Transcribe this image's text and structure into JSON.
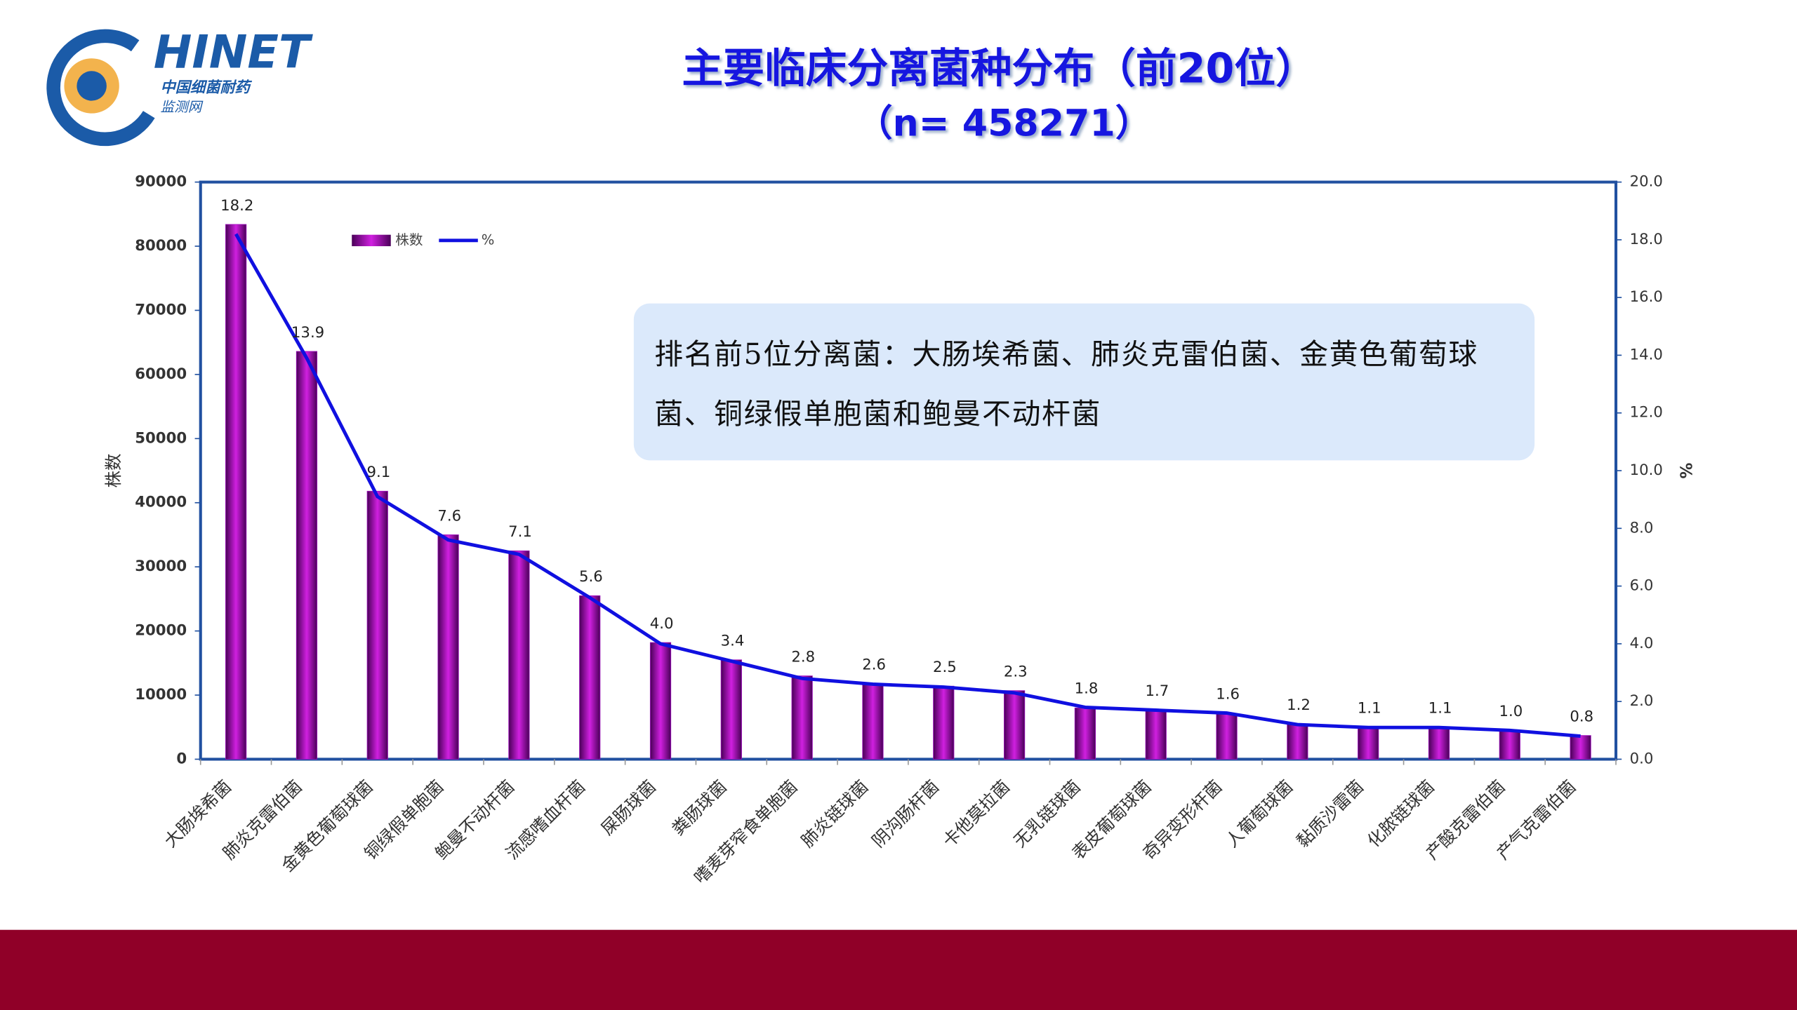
{
  "logo": {
    "text": "HINET",
    "line1": "中国细菌耐药",
    "line2": "监测网"
  },
  "chart_data": {
    "type": "bar-line",
    "title": "主要临床分离菌种分布（前20位）",
    "subtitle": "（n= 458271）",
    "annotation": "排名前5位分离菌：大肠埃希菌、肺炎克雷伯菌、金黄色葡萄球菌、铜绿假单胞菌和鲍曼不动杆菌",
    "y_label": "株数",
    "y2_label": "%",
    "legend": "top-left",
    "categories": [
      "大肠埃希菌",
      "肺炎克雷伯菌",
      "金黄色葡萄球菌",
      "铜绿假单胞菌",
      "鲍曼不动杆菌",
      "流感嗜血杆菌",
      "屎肠球菌",
      "粪肠球菌",
      "嗜麦芽窄食单胞菌",
      "肺炎链球菌",
      "阴沟肠杆菌",
      "卡他莫拉菌",
      "无乳链球菌",
      "表皮葡萄球菌",
      "奇异变形杆菌",
      "人葡萄球菌",
      "黏质沙雷菌",
      "化脓链球菌",
      "产酸克雷伯菌",
      "产气克雷伯菌"
    ],
    "series": [
      {
        "name": "株数",
        "color": "#a010c0",
        "values": [
          83400,
          63600,
          41800,
          35000,
          32500,
          25500,
          18200,
          15500,
          13000,
          11800,
          11400,
          10700,
          8000,
          7700,
          7100,
          5500,
          5000,
          5000,
          4500,
          3700
        ]
      },
      {
        "name": "%",
        "color": "#1010e0",
        "axis": "y2",
        "values": [
          18.2,
          13.9,
          9.1,
          7.6,
          7.1,
          5.6,
          4.0,
          3.4,
          2.8,
          2.6,
          2.5,
          2.3,
          1.8,
          1.7,
          1.6,
          1.2,
          1.1,
          1.1,
          1.0,
          0.8
        ],
        "value_labels": [
          "18.2",
          "13.9",
          "9.1",
          "7.6",
          "7.1",
          "5.6",
          "4.0",
          "3.4",
          "2.8",
          "2.6",
          "2.5",
          "2.3",
          "1.8",
          "1.7",
          "1.6",
          "1.2",
          "1.1",
          "1.1",
          "1.0",
          "0.8"
        ]
      }
    ],
    "ylim": [
      0,
      90000
    ],
    "yticks": [
      0,
      10000,
      20000,
      30000,
      40000,
      50000,
      60000,
      70000,
      80000,
      90000
    ],
    "y2lim": [
      0,
      20
    ],
    "y2ticks": [
      {
        "value": 0,
        "label": "0.0"
      },
      {
        "value": 2,
        "label": "2.0"
      },
      {
        "value": 4,
        "label": "4.0"
      },
      {
        "value": 6,
        "label": "6.0"
      },
      {
        "value": 8,
        "label": "8.0"
      },
      {
        "value": 10,
        "label": "10.0"
      },
      {
        "value": 12,
        "label": "12.0"
      },
      {
        "value": 14,
        "label": "14.0"
      },
      {
        "value": 16,
        "label": "16.0"
      },
      {
        "value": 18,
        "label": "18.0"
      },
      {
        "value": 20,
        "label": "20.0"
      }
    ]
  }
}
